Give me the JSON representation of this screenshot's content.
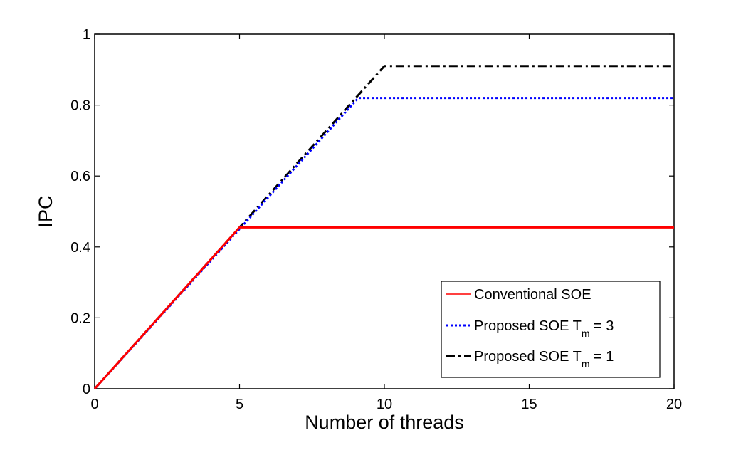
{
  "chart_data": {
    "type": "line",
    "xlabel": "Number of threads",
    "ylabel": "IPC",
    "xlim": [
      0,
      20
    ],
    "ylim": [
      0,
      1
    ],
    "x_ticks": [
      0,
      5,
      10,
      15,
      20
    ],
    "y_ticks": [
      0,
      0.2,
      0.4,
      0.6,
      0.8,
      1
    ],
    "x_tick_labels": [
      "0",
      "5",
      "10",
      "15",
      "20"
    ],
    "y_tick_labels": [
      "0",
      "0.2",
      "0.4",
      "0.6",
      "0.8",
      "1"
    ],
    "grid": false,
    "legend_position": "bottom-right",
    "series": [
      {
        "name": "Conventional SOE",
        "legend_main": "Conventional SOE",
        "color": "#ff0000",
        "line_style": "solid",
        "x": [
          0,
          5,
          20
        ],
        "y": [
          0,
          0.455,
          0.455
        ]
      },
      {
        "name": "Proposed SOE Tm = 3",
        "legend_main": "Proposed SOE T",
        "legend_sub": "m",
        "legend_tail": " = 3",
        "color": "#0000ff",
        "line_style": "dotted",
        "x": [
          0,
          9.1,
          20
        ],
        "y": [
          0,
          0.82,
          0.82
        ]
      },
      {
        "name": "Proposed SOE Tm = 1",
        "legend_main": "Proposed SOE T",
        "legend_sub": "m",
        "legend_tail": " = 1",
        "color": "#000000",
        "line_style": "dashdot",
        "x": [
          0,
          10,
          20
        ],
        "y": [
          0,
          0.91,
          0.91
        ]
      }
    ]
  }
}
